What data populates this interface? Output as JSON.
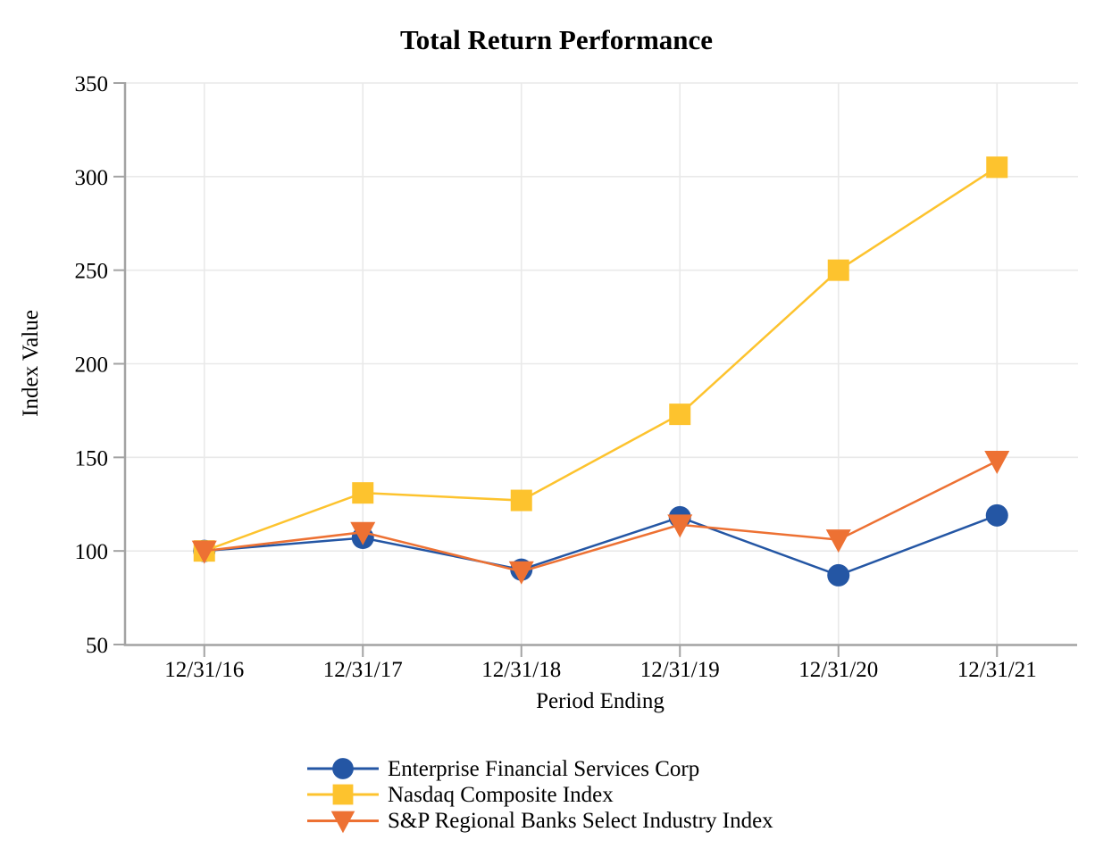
{
  "chart_data": {
    "type": "line",
    "title": "Total Return Performance",
    "xlabel": "Period Ending",
    "ylabel": "Index Value",
    "categories": [
      "12/31/16",
      "12/31/17",
      "12/31/18",
      "12/31/19",
      "12/31/20",
      "12/31/21"
    ],
    "series": [
      {
        "name": "Enterprise Financial Services Corp",
        "marker": "circle",
        "color": "#2456A4",
        "values": [
          100,
          107,
          90,
          118,
          87,
          119
        ]
      },
      {
        "name": "Nasdaq Composite Index",
        "marker": "square",
        "color": "#FDC32E",
        "values": [
          100,
          131,
          127,
          173,
          250,
          305
        ]
      },
      {
        "name": "S&P Regional Banks Select Industry Index",
        "marker": "triangle-down",
        "color": "#ED7133",
        "values": [
          100,
          110,
          89,
          114,
          106,
          148
        ]
      }
    ],
    "ylim": [
      50,
      350
    ],
    "yticks": [
      50,
      100,
      150,
      200,
      250,
      300,
      350
    ],
    "grid": true,
    "legend_position": "bottom"
  },
  "colors": {
    "grid": "#E9E9E9",
    "axis": "#A3A3A3",
    "text": "#000000",
    "background": "#FFFFFF"
  }
}
